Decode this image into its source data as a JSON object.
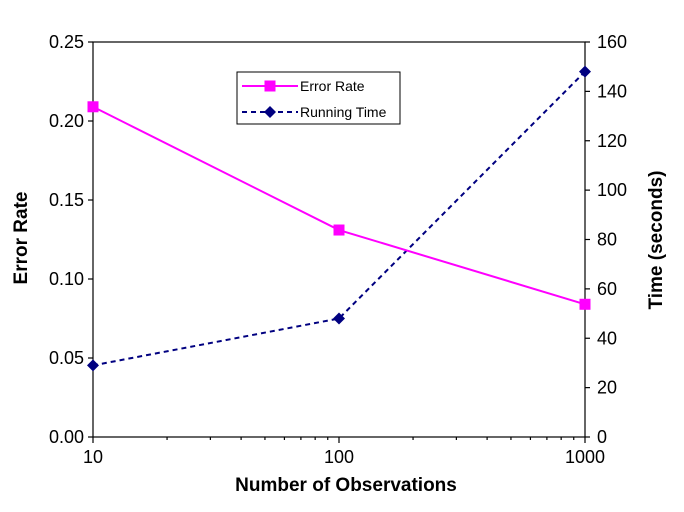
{
  "chart_data": {
    "type": "line",
    "x_scale": "log",
    "categories": [
      "10",
      "100",
      "1000"
    ],
    "x": [
      10,
      100,
      1000
    ],
    "xlabel": "Number of Observations",
    "ylabel_left": "Error Rate",
    "ylabel_right": "Time (seconds)",
    "ylim_left": [
      0,
      0.25
    ],
    "ylim_right": [
      0,
      160
    ],
    "yticks_left": [
      "0.00",
      "0.05",
      "0.10",
      "0.15",
      "0.20",
      "0.25"
    ],
    "yticks_right": [
      "0",
      "20",
      "40",
      "60",
      "80",
      "100",
      "120",
      "140",
      "160"
    ],
    "grid": false,
    "legend_position": "top-center",
    "series": [
      {
        "name": "Error Rate",
        "axis": "left",
        "values": [
          0.209,
          0.131,
          0.084
        ],
        "color": "#ff00ff",
        "line_style": "solid",
        "marker": "square"
      },
      {
        "name": "Running Time",
        "axis": "right",
        "values": [
          29,
          48,
          148
        ],
        "color": "#000080",
        "line_style": "dashed",
        "marker": "diamond"
      }
    ]
  }
}
